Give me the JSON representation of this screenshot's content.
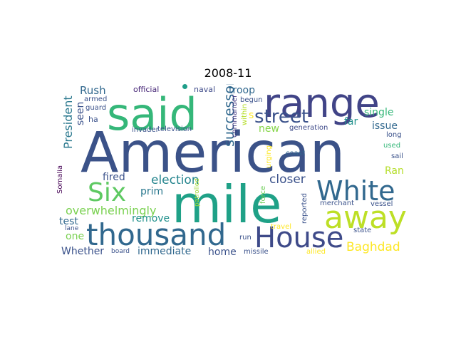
{
  "title": "2008-11",
  "words": [
    {
      "text": "American",
      "color": "#3b5288"
    },
    {
      "text": "mile",
      "color": "#1fa187"
    },
    {
      "text": "said",
      "color": "#35b779"
    },
    {
      "text": "range",
      "color": "#414487"
    },
    {
      "text": "thousand",
      "color": "#31688e"
    },
    {
      "text": "House",
      "color": "#3e4a89"
    },
    {
      "text": "White",
      "color": "#31688e"
    },
    {
      "text": "away",
      "color": "#bddf26"
    },
    {
      "text": "Six",
      "color": "#5ec962"
    },
    {
      "text": "street",
      "color": "#3b528b"
    },
    {
      "text": "election",
      "color": "#25858e"
    },
    {
      "text": "successor",
      "color": "#31688e"
    },
    {
      "text": "Baghdad",
      "color": "#fde725"
    },
    {
      "text": "closer",
      "color": "#3b528b"
    },
    {
      "text": "overwhelmingly",
      "color": "#7ad151"
    },
    {
      "text": "President",
      "color": "#2a788e"
    },
    {
      "text": "Whether",
      "color": "#3b528b"
    },
    {
      "text": "immediate",
      "color": "#31688e"
    },
    {
      "text": "troop",
      "color": "#31688e"
    },
    {
      "text": "Rush",
      "color": "#31688e"
    },
    {
      "text": "single",
      "color": "#35b779"
    },
    {
      "text": "issue",
      "color": "#31688e"
    },
    {
      "text": "seen",
      "color": "#3b528b"
    },
    {
      "text": "fired",
      "color": "#3b528b"
    },
    {
      "text": "prim",
      "color": "#2a788e"
    },
    {
      "text": "remove",
      "color": "#21918c"
    },
    {
      "text": "test",
      "color": "#31688e"
    },
    {
      "text": "one",
      "color": "#7ad151"
    },
    {
      "text": "home",
      "color": "#3b528b"
    },
    {
      "text": "far",
      "color": "#21918c"
    },
    {
      "text": "new",
      "color": "#86d549"
    },
    {
      "text": "Ran",
      "color": "#b5de2b"
    },
    {
      "text": "s",
      "color": "#fde725"
    },
    {
      "text": "official",
      "color": "#482878"
    },
    {
      "text": "naval",
      "color": "#3e4a89"
    },
    {
      "text": "invader",
      "color": "#3b528b"
    },
    {
      "text": "television",
      "color": "#3b528b"
    },
    {
      "text": "commander",
      "color": "#443983"
    },
    {
      "text": "begun",
      "color": "#3b528b"
    },
    {
      "text": "within",
      "color": "#b5de2b"
    },
    {
      "text": "generation",
      "color": "#3e4a89"
    },
    {
      "text": "long",
      "color": "#3b528b"
    },
    {
      "text": "used",
      "color": "#35b779"
    },
    {
      "text": "sail",
      "color": "#3b528b"
    },
    {
      "text": "armed",
      "color": "#3b528b"
    },
    {
      "text": "guard",
      "color": "#3b528b"
    },
    {
      "text": "ha",
      "color": "#3b528b"
    },
    {
      "text": "Somalia",
      "color": "#440154"
    },
    {
      "text": "patrolled",
      "color": "#a0da39"
    },
    {
      "text": "urging",
      "color": "#fde725"
    },
    {
      "text": "force",
      "color": "#6ece58"
    },
    {
      "text": "coast",
      "color": "#31688e"
    },
    {
      "text": "reported",
      "color": "#3b528b"
    },
    {
      "text": "merchant",
      "color": "#3b528b"
    },
    {
      "text": "vessel",
      "color": "#3b528b"
    },
    {
      "text": "travel",
      "color": "#fde725"
    },
    {
      "text": "lane",
      "color": "#3b528b"
    },
    {
      "text": "run",
      "color": "#3b528b"
    },
    {
      "text": "state",
      "color": "#3b528b"
    },
    {
      "text": "board",
      "color": "#3b528b"
    },
    {
      "text": "missile",
      "color": "#3b528b"
    },
    {
      "text": "allied",
      "color": "#fde725"
    }
  ]
}
